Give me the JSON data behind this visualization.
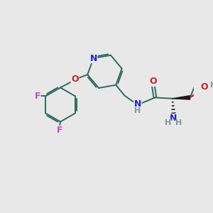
{
  "bg_color": "#e8e8e8",
  "bond_color": "#2d6b5e",
  "N_color": "#2222cc",
  "O_color": "#cc2222",
  "F_color": "#cc44cc",
  "H_color": "#7a9a9a",
  "figsize": [
    3.0,
    3.0
  ],
  "dpi": 100,
  "xlim": [
    0,
    10
  ],
  "ylim": [
    0,
    10
  ]
}
